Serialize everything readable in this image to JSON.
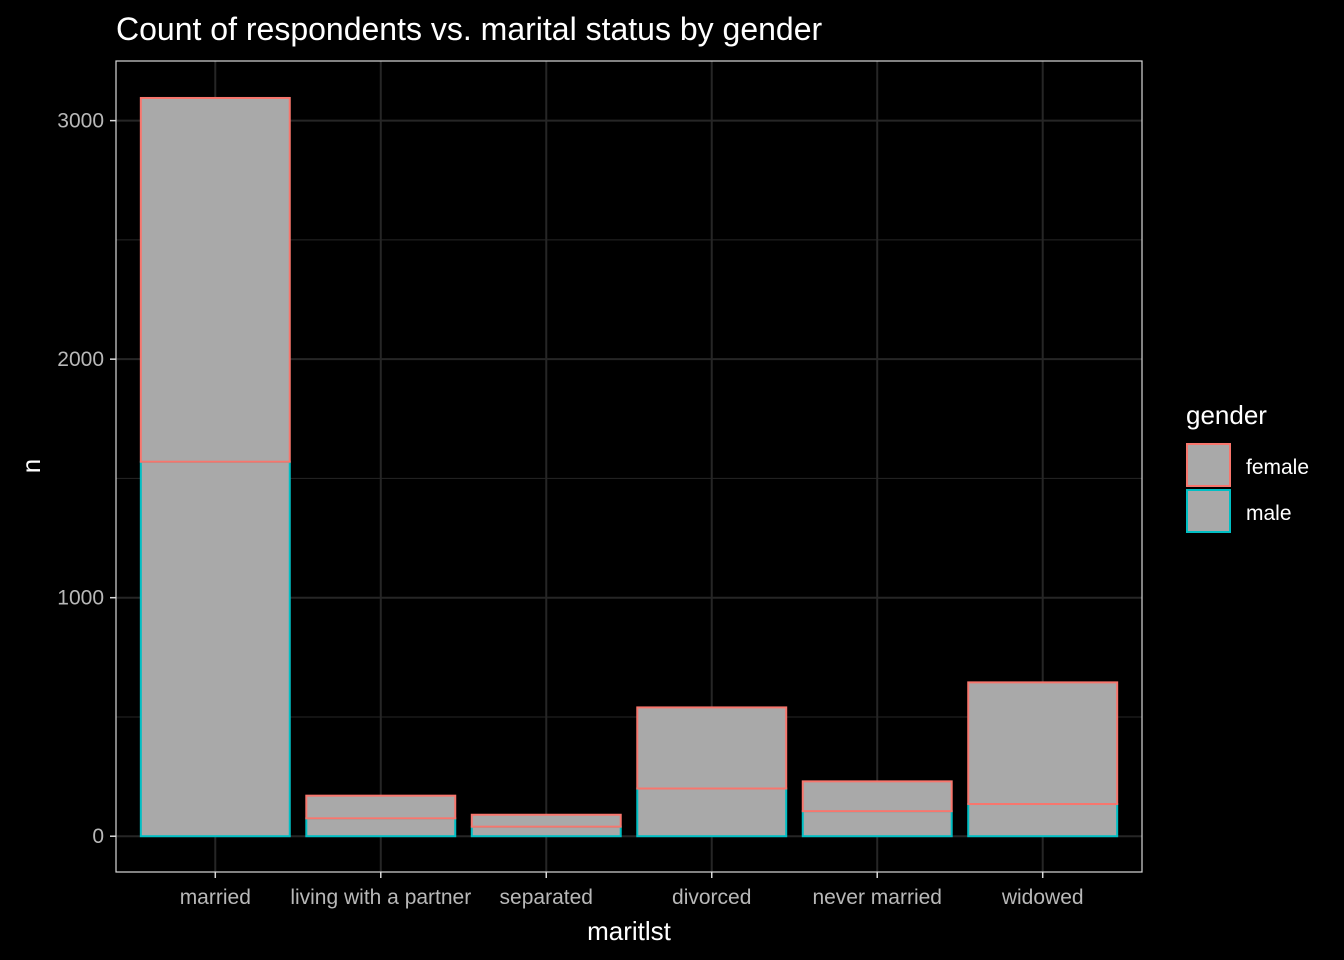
{
  "chart_data": {
    "type": "bar",
    "stacked": true,
    "title": "Count of respondents vs. marital status by gender",
    "xlabel": "maritlst",
    "ylabel": "n",
    "categories": [
      "married",
      "living with a partner",
      "separated",
      "divorced",
      "never married",
      "widowed"
    ],
    "series": [
      {
        "name": "male",
        "values": [
          1570,
          75,
          40,
          200,
          105,
          135
        ]
      },
      {
        "name": "female",
        "values": [
          1525,
          95,
          50,
          340,
          125,
          510
        ]
      }
    ],
    "ylim": [
      -150,
      3250
    ],
    "yticks": [
      0,
      1000,
      2000,
      3000
    ],
    "grid": true,
    "bar_fill": "#a9a9a9",
    "colors": {
      "female": "#f8766d",
      "male": "#00bfc4",
      "background": "#000000",
      "grid": "#262626",
      "panel_border": "#d9d9d9"
    },
    "legend": {
      "title": "gender",
      "position": "right",
      "entries": [
        "female",
        "male"
      ]
    }
  }
}
